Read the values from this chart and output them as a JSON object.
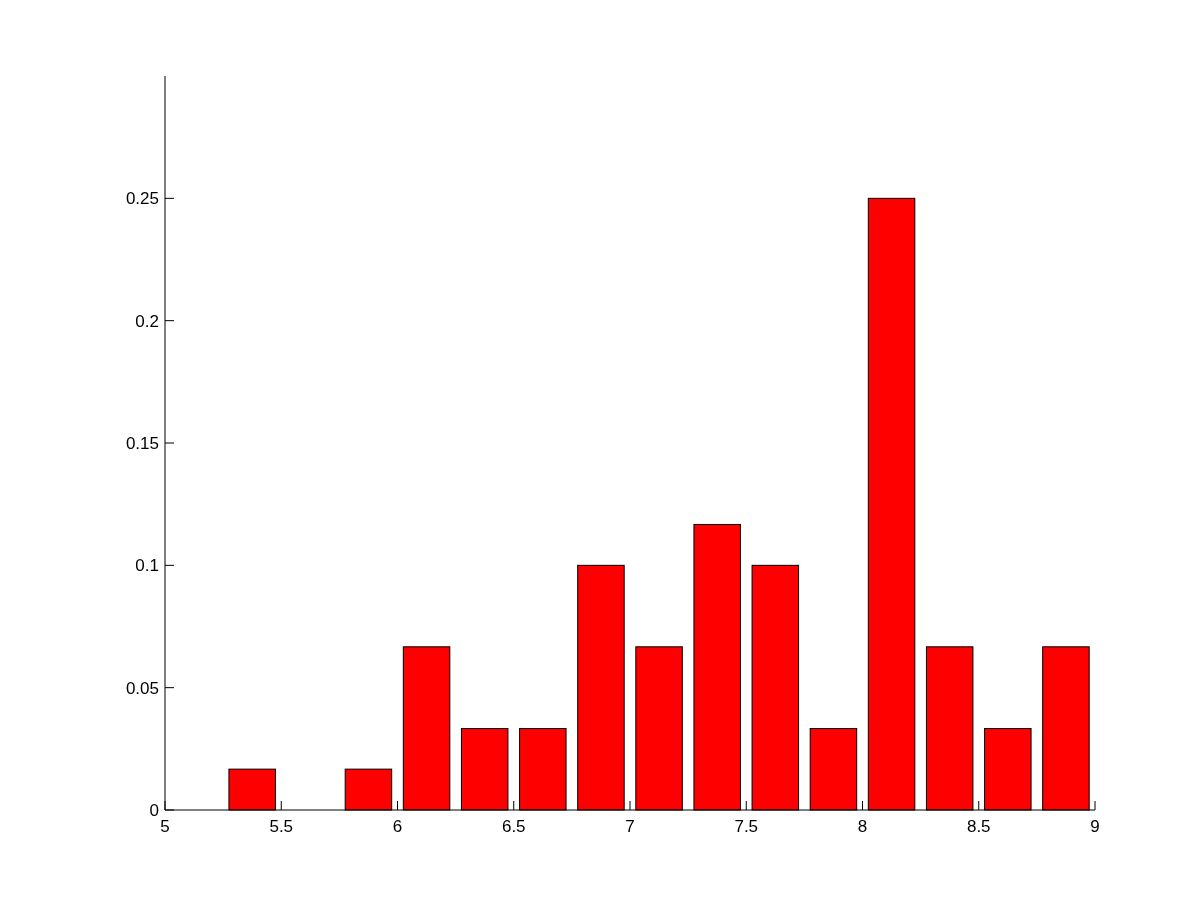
{
  "chart_data": {
    "type": "histogram",
    "bins": [
      5.25,
      5.5,
      5.75,
      6.0,
      6.25,
      6.5,
      6.75,
      7.0,
      7.25,
      7.5,
      7.75,
      8.0,
      8.25,
      8.5,
      8.75,
      9.0
    ],
    "values": [
      0.0167,
      0,
      0.0167,
      0.0667,
      0.0333,
      0.0333,
      0.1,
      0.0667,
      0.1167,
      0.1,
      0.0333,
      0.25,
      0.0667,
      0.0333,
      0.0667
    ],
    "color": "#ff0000",
    "xlim": [
      5,
      9
    ],
    "xticks": [
      5,
      5.5,
      6,
      6.5,
      7,
      7.5,
      8,
      8.5,
      9
    ],
    "ylim": [
      0,
      0.3
    ],
    "yticks": [
      0,
      0.05,
      0.1,
      0.15,
      0.2,
      0.25
    ],
    "grid": false
  }
}
